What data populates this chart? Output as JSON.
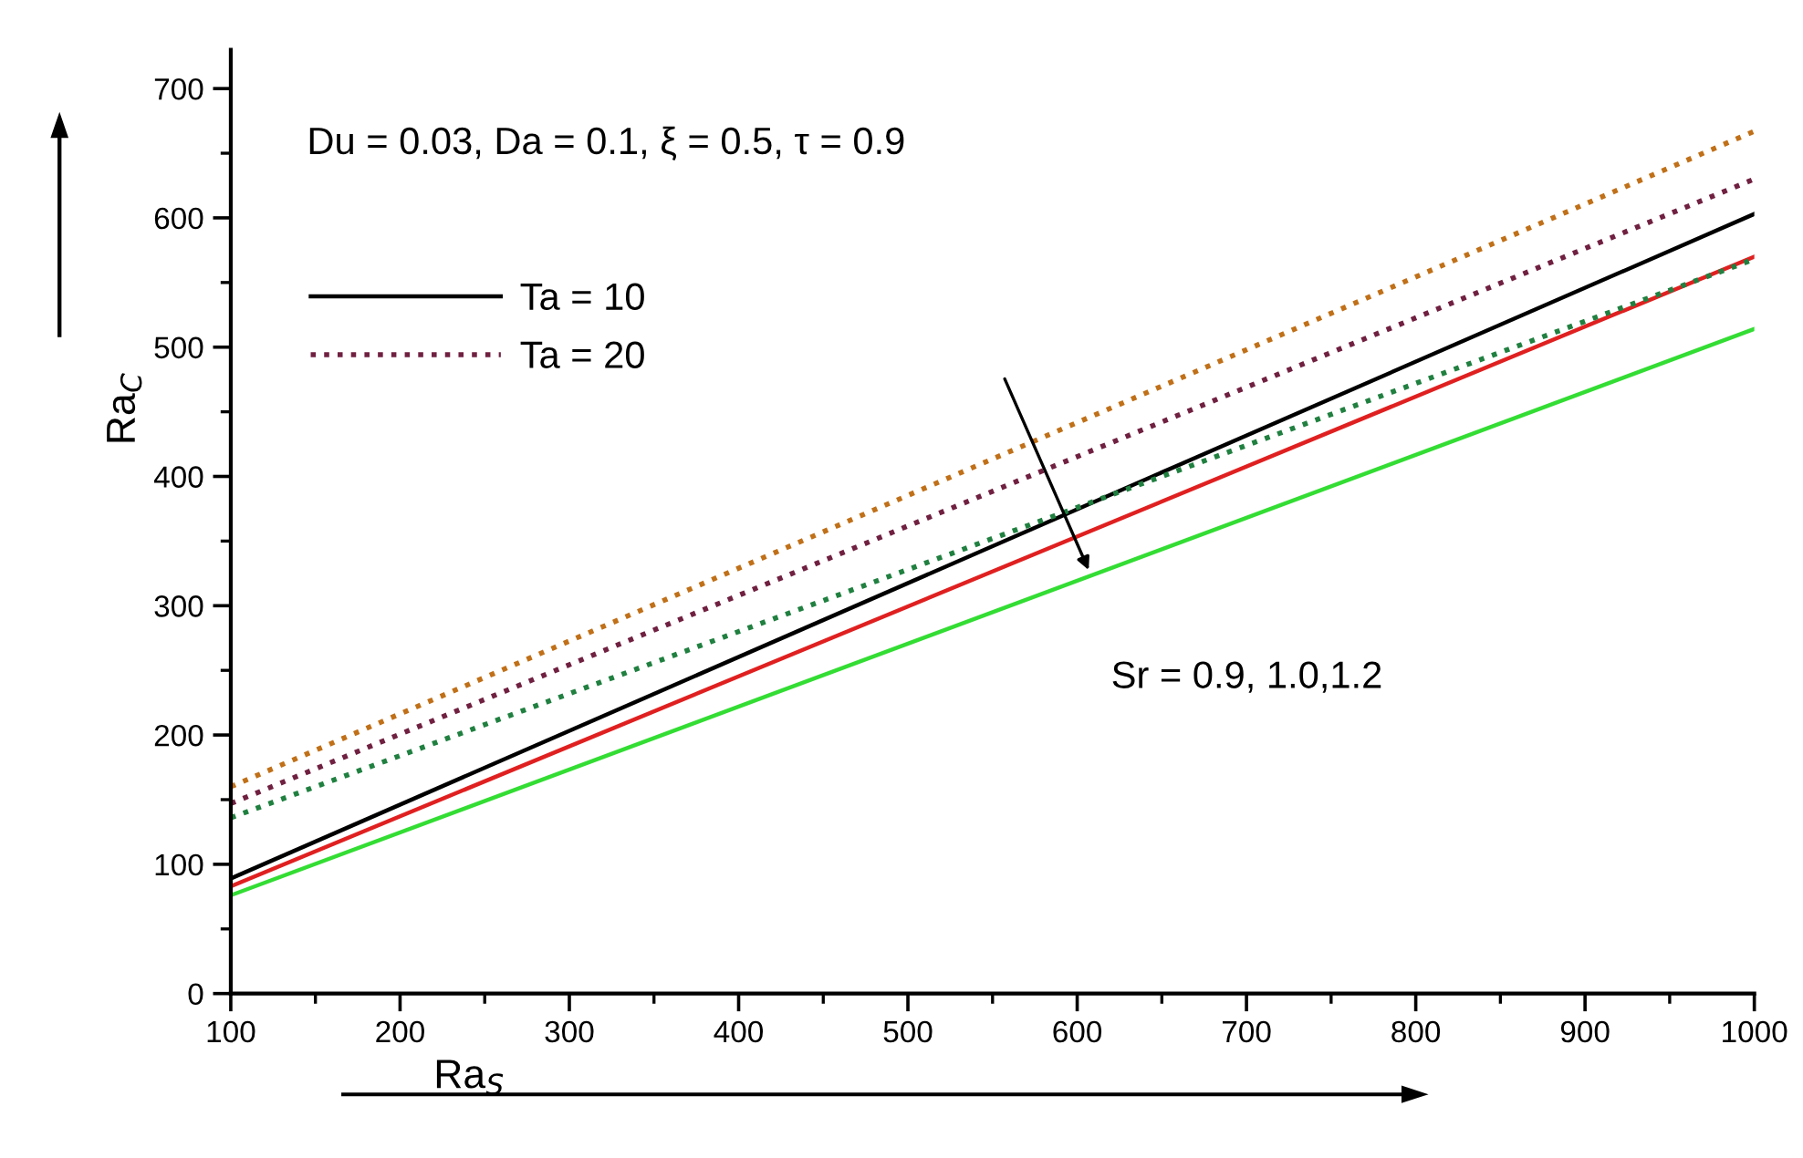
{
  "chart_data": {
    "type": "line",
    "xlabel": "Ra$_{S}$",
    "ylabel": "Ra$_{C}$",
    "x": [
      100,
      1000
    ],
    "series": [
      {
        "name": "Ta = 10",
        "color": "#000000",
        "values": [
          89,
          603
        ],
        "line_style": "solid"
      },
      {
        "color": "#e02020",
        "values": [
          83,
          570
        ],
        "line_style": "solid"
      },
      {
        "color": "#33dd33",
        "values": [
          76,
          514
        ],
        "line_style": "solid"
      },
      {
        "color": "#c07018",
        "values": [
          160,
          667
        ],
        "line_style": "dotted"
      },
      {
        "name": "Ta = 20",
        "color": "#702040",
        "values": [
          147,
          630
        ],
        "line_style": "dotted"
      },
      {
        "color": "#208040",
        "values": [
          136,
          568
        ],
        "line_style": "dotted"
      }
    ],
    "annotations": [
      "Du = 0.03, Da = 0.1, ξ = 0.5, τ = 0.9",
      {
        "text": "Sr = 0.9, 1.0,1.2",
        "x": 608,
        "y": 324
      }
    ],
    "xlim": [
      100,
      1000
    ],
    "ylim": [
      0,
      730
    ],
    "xticks": [
      100,
      200,
      300,
      400,
      500,
      600,
      700,
      800,
      900,
      1000
    ],
    "yticks": [
      0,
      100,
      200,
      300,
      400,
      500,
      600,
      700
    ],
    "legend": "top left",
    "grid": false,
    "marker": "none"
  }
}
